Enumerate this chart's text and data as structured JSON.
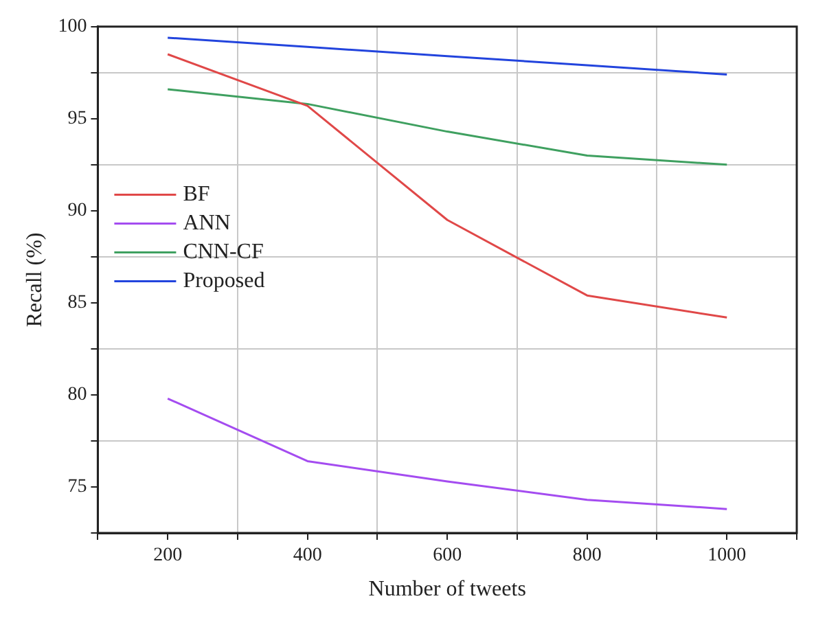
{
  "chart_data": {
    "type": "line",
    "xlabel": "Number of tweets",
    "ylabel": "Recall (%)",
    "x": [
      200,
      400,
      600,
      800,
      1000
    ],
    "series": [
      {
        "name": "BF",
        "color": "#e04848",
        "values": [
          98.5,
          95.7,
          89.5,
          85.4,
          84.2
        ]
      },
      {
        "name": "ANN",
        "color": "#a44cf0",
        "values": [
          79.8,
          76.4,
          75.3,
          74.3,
          73.8
        ]
      },
      {
        "name": "CNN-CF",
        "color": "#3fa060",
        "values": [
          96.6,
          95.8,
          94.3,
          93.0,
          92.5
        ]
      },
      {
        "name": "Proposed",
        "color": "#2244dd",
        "values": [
          99.4,
          98.9,
          98.4,
          97.9,
          97.4
        ]
      }
    ],
    "xlim": [
      100,
      1100
    ],
    "ylim": [
      72.5,
      100
    ],
    "xticks": [
      {
        "value": 100,
        "label": null
      },
      200,
      {
        "value": 300,
        "label": null
      },
      400,
      {
        "value": 500,
        "label": null
      },
      600,
      {
        "value": 700,
        "label": null
      },
      800,
      {
        "value": 900,
        "label": null
      },
      1000,
      {
        "value": 1100,
        "label": null
      }
    ],
    "yticks": [
      {
        "value": 72.5,
        "label": null
      },
      75,
      {
        "value": 77.5,
        "label": null
      },
      80,
      {
        "value": 82.5,
        "label": null
      },
      85,
      {
        "value": 87.5,
        "label": null
      },
      90,
      {
        "value": 92.5,
        "label": null
      },
      95,
      {
        "value": 97.5,
        "label": null
      },
      100
    ],
    "grid": true,
    "legend": "left",
    "marker": "none",
    "line_style": "solid"
  }
}
